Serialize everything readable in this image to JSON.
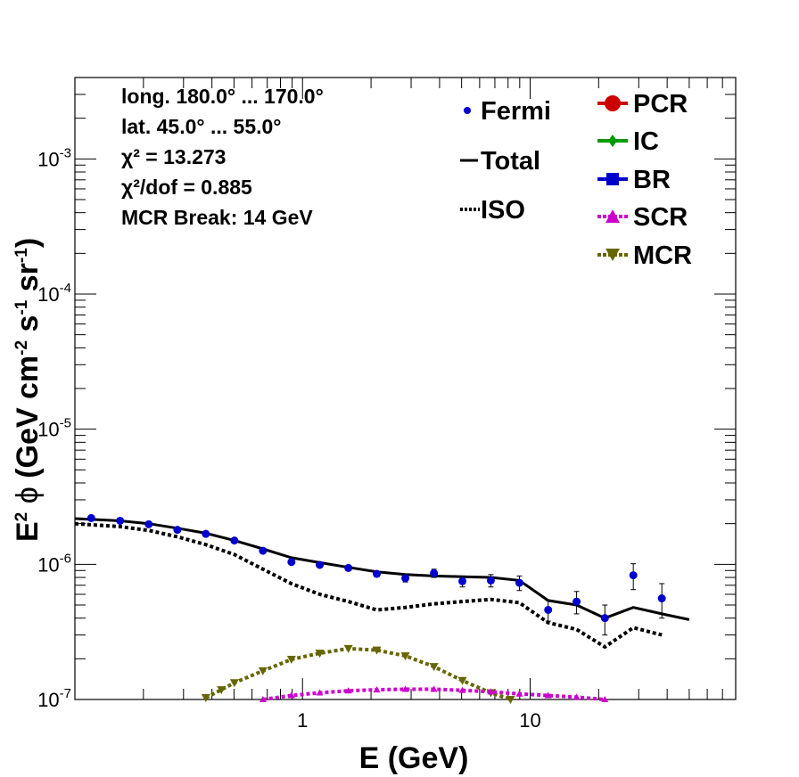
{
  "chart_data": {
    "type": "line",
    "xscale": "log",
    "yscale": "log",
    "xlim": [
      0.1,
      80
    ],
    "ylim": [
      1e-07,
      0.004
    ],
    "xlabel": "E (GeV)",
    "ylabel_parts": {
      "E": "E",
      "exp2": "2",
      "phi": "ϕ",
      "unit_pre": "(GeV cm",
      "exp_cm": "-2",
      "s": "s",
      "exp_s": "-1",
      "sr": "sr",
      "exp_sr": "-1",
      "close": ")"
    },
    "x_tick_labels": [
      {
        "x": 1,
        "label": "1"
      },
      {
        "x": 10,
        "label": "10"
      }
    ],
    "y_tick_labels": [
      {
        "y": 1e-07,
        "base": "10",
        "exp": "-7"
      },
      {
        "y": 1e-06,
        "base": "10",
        "exp": "-6"
      },
      {
        "y": 1e-05,
        "base": "10",
        "exp": "-5"
      },
      {
        "y": 0.0001,
        "base": "10",
        "exp": "-4"
      },
      {
        "y": 0.001,
        "base": "10",
        "exp": "-3"
      }
    ],
    "info": {
      "long_text": "long. 180.0° ... 170.0°",
      "lat_text": "lat. 45.0° ... 55.0°",
      "chi2_text": "χ² = 13.273",
      "chi2dof_text": "χ²/dof = 0.885",
      "break_text": "MCR Break: 14 GeV"
    },
    "legend": [
      {
        "name": "Fermi",
        "color": "#0000cc",
        "style": "point-small"
      },
      {
        "name": "Total",
        "color": "#000000",
        "style": "solid"
      },
      {
        "name": "ISO",
        "color": "#000000",
        "style": "dotted"
      },
      {
        "name": "PCR",
        "color": "#cc0000",
        "style": "circle"
      },
      {
        "name": "IC",
        "color": "#009900",
        "style": "diamond"
      },
      {
        "name": "BR",
        "color": "#0000cc",
        "style": "square"
      },
      {
        "name": "SCR",
        "color": "#cc00cc",
        "style": "triangle-up"
      },
      {
        "name": "MCR",
        "color": "#666600",
        "style": "triangle-down"
      }
    ],
    "series": [
      {
        "name": "Fermi",
        "color": "#0000cc",
        "points": [
          {
            "x": 0.118,
            "y": 2.2e-06,
            "err": 5e-08
          },
          {
            "x": 0.158,
            "y": 2.1e-06,
            "err": 5e-08
          },
          {
            "x": 0.211,
            "y": 1.98e-06,
            "err": 5e-08
          },
          {
            "x": 0.282,
            "y": 1.8e-06,
            "err": 5e-08
          },
          {
            "x": 0.376,
            "y": 1.68e-06,
            "err": 5e-08
          },
          {
            "x": 0.502,
            "y": 1.5e-06,
            "err": 5e-08
          },
          {
            "x": 0.67,
            "y": 1.26e-06,
            "err": 4e-08
          },
          {
            "x": 0.894,
            "y": 1.04e-06,
            "err": 4e-08
          },
          {
            "x": 1.19,
            "y": 9.9e-07,
            "err": 4e-08
          },
          {
            "x": 1.59,
            "y": 9.4e-07,
            "err": 4e-08
          },
          {
            "x": 2.12,
            "y": 8.5e-07,
            "err": 4e-08
          },
          {
            "x": 2.83,
            "y": 7.9e-07,
            "err": 5e-08
          },
          {
            "x": 3.78,
            "y": 8.6e-07,
            "err": 6e-08
          },
          {
            "x": 5.04,
            "y": 7.5e-07,
            "err": 7e-08
          },
          {
            "x": 6.72,
            "y": 7.6e-07,
            "err": 8e-08
          },
          {
            "x": 8.97,
            "y": 7.3e-07,
            "err": 9e-08
          },
          {
            "x": 12.0,
            "y": 4.6e-07,
            "err": 8e-08
          },
          {
            "x": 16.0,
            "y": 5.3e-07,
            "err": 1e-07
          },
          {
            "x": 21.3,
            "y": 4e-07,
            "err": 1e-07
          },
          {
            "x": 28.4,
            "y": 8.3e-07,
            "err": 1.8e-07
          },
          {
            "x": 37.9,
            "y": 5.6e-07,
            "err": 1.6e-07
          }
        ]
      },
      {
        "name": "Total",
        "color": "#000000",
        "points": [
          {
            "x": 0.1,
            "y": 2.18e-06
          },
          {
            "x": 0.158,
            "y": 2.1e-06
          },
          {
            "x": 0.211,
            "y": 2e-06
          },
          {
            "x": 0.282,
            "y": 1.85e-06
          },
          {
            "x": 0.376,
            "y": 1.7e-06
          },
          {
            "x": 0.502,
            "y": 1.5e-06
          },
          {
            "x": 0.67,
            "y": 1.3e-06
          },
          {
            "x": 0.894,
            "y": 1.12e-06
          },
          {
            "x": 1.19,
            "y": 1.03e-06
          },
          {
            "x": 1.59,
            "y": 9.5e-07
          },
          {
            "x": 2.12,
            "y": 8.8e-07
          },
          {
            "x": 2.83,
            "y": 8.4e-07
          },
          {
            "x": 3.78,
            "y": 8.2e-07
          },
          {
            "x": 5.04,
            "y": 8.1e-07
          },
          {
            "x": 6.72,
            "y": 8e-07
          },
          {
            "x": 8.97,
            "y": 7.6e-07
          },
          {
            "x": 12.0,
            "y": 5.4e-07
          },
          {
            "x": 16.0,
            "y": 5e-07
          },
          {
            "x": 21.3,
            "y": 4e-07
          },
          {
            "x": 28.4,
            "y": 4.8e-07
          },
          {
            "x": 37.9,
            "y": 4.3e-07
          },
          {
            "x": 50.0,
            "y": 3.9e-07
          }
        ]
      },
      {
        "name": "ISO",
        "color": "#000000",
        "points": [
          {
            "x": 0.1,
            "y": 2e-06
          },
          {
            "x": 0.158,
            "y": 1.9e-06
          },
          {
            "x": 0.211,
            "y": 1.78e-06
          },
          {
            "x": 0.282,
            "y": 1.6e-06
          },
          {
            "x": 0.376,
            "y": 1.4e-06
          },
          {
            "x": 0.502,
            "y": 1.18e-06
          },
          {
            "x": 0.67,
            "y": 9.2e-07
          },
          {
            "x": 0.894,
            "y": 7.2e-07
          },
          {
            "x": 1.19,
            "y": 6e-07
          },
          {
            "x": 1.59,
            "y": 5.3e-07
          },
          {
            "x": 2.12,
            "y": 4.6e-07
          },
          {
            "x": 2.83,
            "y": 4.8e-07
          },
          {
            "x": 3.78,
            "y": 5.1e-07
          },
          {
            "x": 5.04,
            "y": 5.3e-07
          },
          {
            "x": 6.72,
            "y": 5.5e-07
          },
          {
            "x": 8.97,
            "y": 5.2e-07
          },
          {
            "x": 12.0,
            "y": 3.7e-07
          },
          {
            "x": 16.0,
            "y": 3.3e-07
          },
          {
            "x": 21.3,
            "y": 2.45e-07
          },
          {
            "x": 28.4,
            "y": 3.4e-07
          },
          {
            "x": 37.9,
            "y": 3e-07
          }
        ]
      },
      {
        "name": "SCR",
        "color": "#cc00cc",
        "points": [
          {
            "x": 0.67,
            "y": 1e-07
          },
          {
            "x": 0.894,
            "y": 1.07e-07
          },
          {
            "x": 1.19,
            "y": 1.12e-07
          },
          {
            "x": 1.59,
            "y": 1.16e-07
          },
          {
            "x": 2.12,
            "y": 1.18e-07
          },
          {
            "x": 2.83,
            "y": 1.19e-07
          },
          {
            "x": 3.78,
            "y": 1.19e-07
          },
          {
            "x": 5.04,
            "y": 1.17e-07
          },
          {
            "x": 6.72,
            "y": 1.14e-07
          },
          {
            "x": 8.97,
            "y": 1.1e-07
          },
          {
            "x": 12.0,
            "y": 1.07e-07
          },
          {
            "x": 16.0,
            "y": 1.04e-07
          },
          {
            "x": 21.3,
            "y": 1e-07
          }
        ]
      },
      {
        "name": "MCR",
        "color": "#666600",
        "points": [
          {
            "x": 0.376,
            "y": 1.03e-07
          },
          {
            "x": 0.44,
            "y": 1.18e-07
          },
          {
            "x": 0.502,
            "y": 1.33e-07
          },
          {
            "x": 0.67,
            "y": 1.63e-07
          },
          {
            "x": 0.894,
            "y": 1.98e-07
          },
          {
            "x": 1.19,
            "y": 2.2e-07
          },
          {
            "x": 1.59,
            "y": 2.38e-07
          },
          {
            "x": 2.12,
            "y": 2.32e-07
          },
          {
            "x": 2.83,
            "y": 2.1e-07
          },
          {
            "x": 3.78,
            "y": 1.75e-07
          },
          {
            "x": 5.04,
            "y": 1.38e-07
          },
          {
            "x": 6.72,
            "y": 1.12e-07
          },
          {
            "x": 8.2,
            "y": 1e-07
          }
        ]
      }
    ]
  }
}
